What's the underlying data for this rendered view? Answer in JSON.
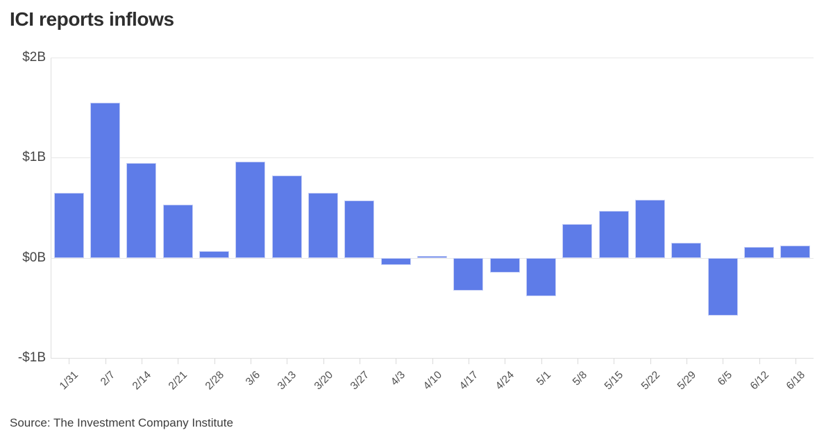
{
  "title": "ICI reports inflows",
  "source": "Source: The Investment Company Institute",
  "colors": {
    "bar_fill": "#5e7ce8",
    "bar_border": "#c7d0f6",
    "grid_line": "#e7e7e7",
    "axis_line": "#dedede",
    "title_text": "#2e2e2e",
    "tick_text": "#4f4f4f",
    "source_text": "#3d3d3d",
    "background": "#ffffff"
  },
  "chart_data": {
    "type": "bar",
    "title": "ICI reports inflows",
    "unit": "billions of dollars",
    "categories": [
      "1/31",
      "2/7",
      "2/14",
      "2/21",
      "2/28",
      "3/6",
      "3/13",
      "3/20",
      "3/27",
      "4/3",
      "4/10",
      "4/17",
      "4/24",
      "5/1",
      "5/8",
      "5/15",
      "5/22",
      "5/29",
      "6/5",
      "6/12",
      "6/18"
    ],
    "values": [
      0.65,
      1.55,
      0.95,
      0.53,
      0.07,
      0.96,
      0.82,
      0.65,
      0.57,
      -0.07,
      0.02,
      -0.33,
      -0.15,
      -0.38,
      0.34,
      0.47,
      0.58,
      0.15,
      -0.58,
      0.11,
      0.12
    ],
    "xlabel": "",
    "ylabel": "",
    "ylim": [
      -1,
      2
    ],
    "yticks": [
      {
        "value": 2,
        "label": "$2B"
      },
      {
        "value": 1,
        "label": "$1B"
      },
      {
        "value": 0,
        "label": "$0B"
      },
      {
        "value": -1,
        "label": "-$1B"
      }
    ],
    "grid": "horizontal",
    "legend": "none",
    "source_label": "Source: The Investment Company Institute"
  }
}
